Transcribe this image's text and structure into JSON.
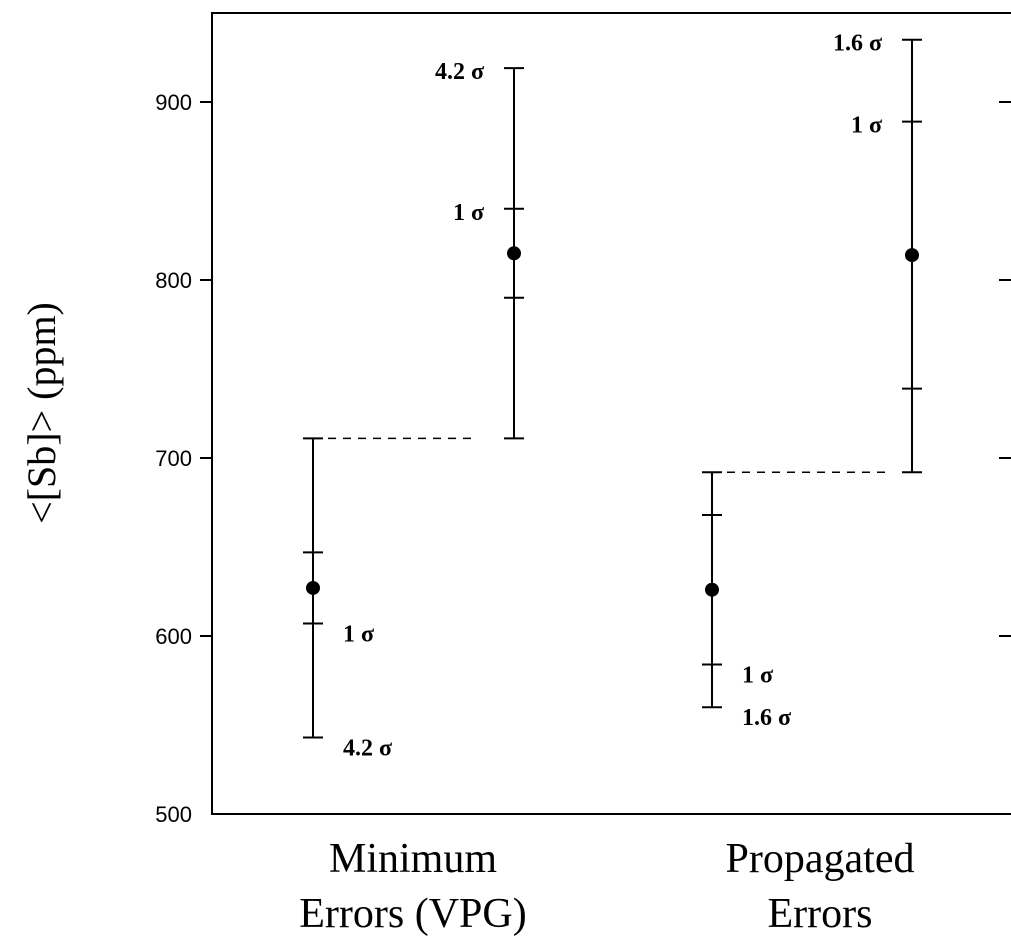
{
  "chart_data": {
    "type": "scatter",
    "title": "",
    "ylabel": "<[Sb]> (ppm)",
    "xlabel": "",
    "ylim": [
      500,
      950
    ],
    "yticks": [
      500,
      600,
      700,
      800,
      900
    ],
    "ytick_labels": [
      "500",
      "600",
      "700",
      "800",
      "900"
    ],
    "grid": false,
    "categories": [
      {
        "lines": [
          "Minimum",
          "Errors (VPG)"
        ]
      },
      {
        "lines": [
          "Propagated",
          "Errors"
        ]
      }
    ],
    "points": [
      {
        "group": 0,
        "slot": 0,
        "y": 627,
        "one_sigma": [
          607,
          647
        ],
        "range": [
          543,
          711
        ],
        "labels": [
          {
            "text": "1 σ",
            "y": 607,
            "side": "right"
          },
          {
            "text": "4.2 σ",
            "y": 543,
            "side": "right"
          }
        ]
      },
      {
        "group": 0,
        "slot": 1,
        "y": 815,
        "one_sigma": [
          790,
          840
        ],
        "range": [
          711,
          919
        ],
        "labels": [
          {
            "text": "1 σ",
            "y": 840,
            "side": "left"
          },
          {
            "text": "4.2 σ",
            "y": 919,
            "side": "left"
          }
        ]
      },
      {
        "group": 1,
        "slot": 0,
        "y": 626,
        "one_sigma": [
          584,
          668
        ],
        "range": [
          560,
          692
        ],
        "labels": [
          {
            "text": "1 σ",
            "y": 584,
            "side": "right"
          },
          {
            "text": "1.6 σ",
            "y": 560,
            "side": "right"
          }
        ]
      },
      {
        "group": 1,
        "slot": 1,
        "y": 814,
        "one_sigma": [
          739,
          889
        ],
        "range": [
          692,
          935
        ],
        "labels": [
          {
            "text": "1 σ",
            "y": 889,
            "side": "left"
          },
          {
            "text": "1.6 σ",
            "y": 935,
            "side": "left"
          }
        ]
      }
    ],
    "dashed_lines": [
      {
        "group": 0,
        "y": 711
      },
      {
        "group": 1,
        "y": 692
      }
    ]
  }
}
